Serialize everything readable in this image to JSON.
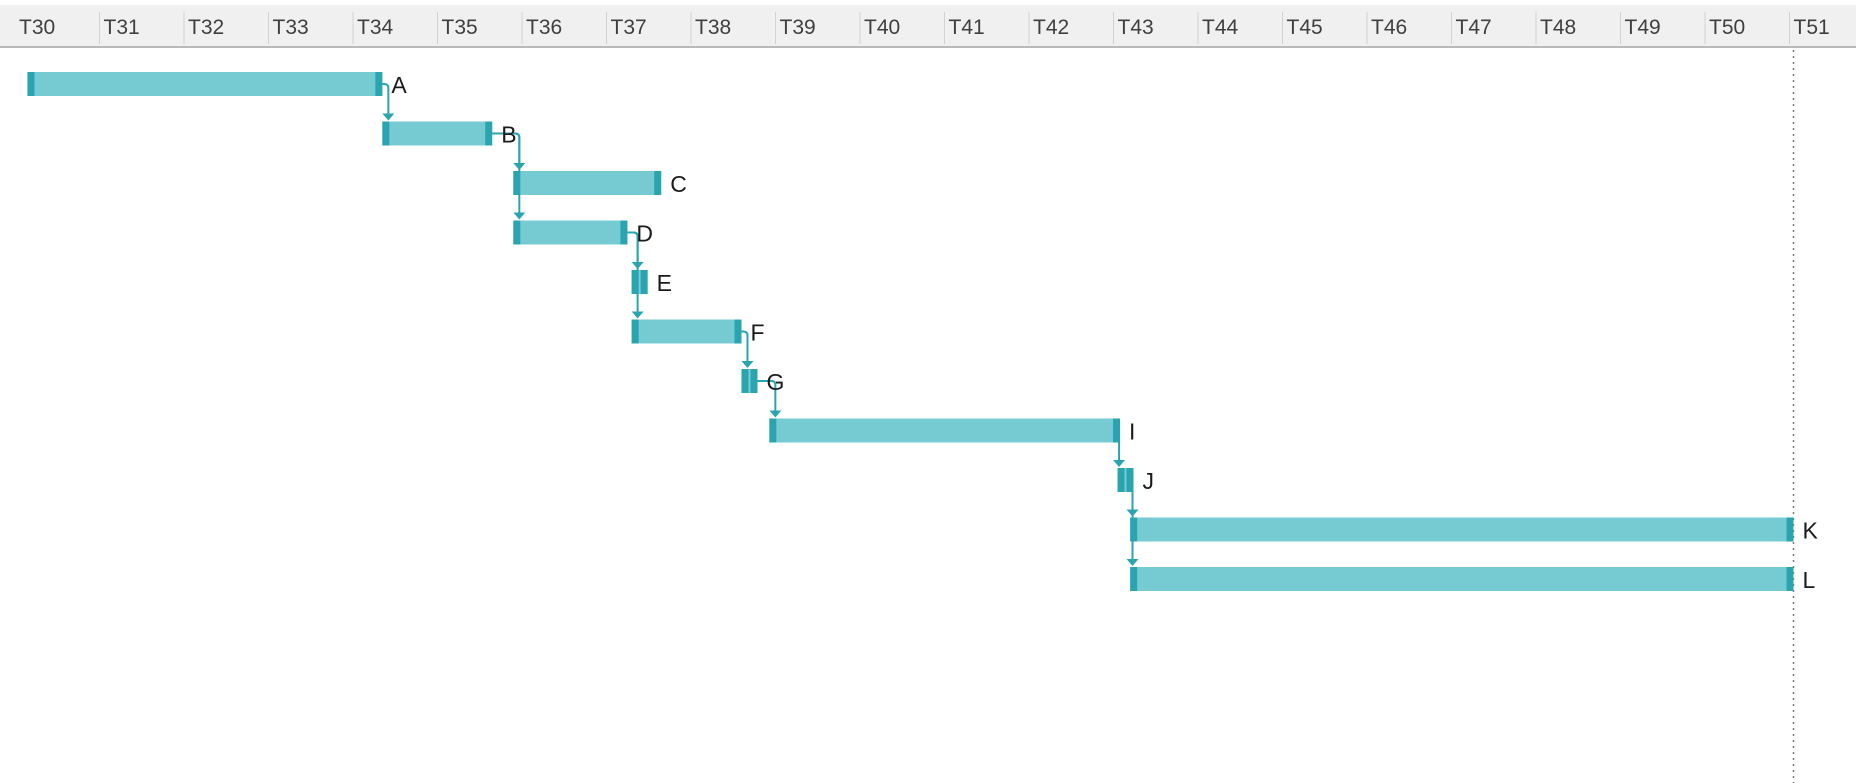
{
  "timeline": {
    "unit_prefix": "T",
    "ticks": [
      "T30",
      "T31",
      "T32",
      "T33",
      "T34",
      "T35",
      "T36",
      "T37",
      "T38",
      "T39",
      "T40",
      "T41",
      "T42",
      "T43",
      "T44",
      "T45",
      "T46",
      "T47",
      "T48",
      "T49",
      "T50",
      "T51"
    ],
    "first_tick": 30,
    "marker_at": 51
  },
  "colors": {
    "bar": "#76cbd3",
    "bar_edge": "#2aa5b0",
    "dependency": "#2aa5b0"
  },
  "tasks": [
    {
      "id": "A",
      "label": "A",
      "start": 30.1,
      "end": 34.3
    },
    {
      "id": "B",
      "label": "B",
      "start": 34.3,
      "end": 35.6
    },
    {
      "id": "C",
      "label": "C",
      "start": 35.85,
      "end": 37.6
    },
    {
      "id": "D",
      "label": "D",
      "start": 35.85,
      "end": 37.2
    },
    {
      "id": "E",
      "label": "E",
      "start": 37.25,
      "end": 37.42
    },
    {
      "id": "F",
      "label": "F",
      "start": 37.25,
      "end": 38.55
    },
    {
      "id": "G",
      "label": "G",
      "start": 38.55,
      "end": 38.73
    },
    {
      "id": "I",
      "label": "I",
      "start": 38.88,
      "end": 43.03
    },
    {
      "id": "J",
      "label": "J",
      "start": 43.0,
      "end": 43.17
    },
    {
      "id": "K",
      "label": "K",
      "start": 43.15,
      "end": 51.0
    },
    {
      "id": "L",
      "label": "L",
      "start": 43.15,
      "end": 51.0
    }
  ],
  "dependencies": [
    {
      "from": "A",
      "to": "B"
    },
    {
      "from": "B",
      "to": "C"
    },
    {
      "from": "B",
      "to": "D"
    },
    {
      "from": "D",
      "to": "E"
    },
    {
      "from": "D",
      "to": "F"
    },
    {
      "from": "F",
      "to": "G"
    },
    {
      "from": "G",
      "to": "I"
    },
    {
      "from": "I",
      "to": "J"
    },
    {
      "from": "J",
      "to": "K"
    },
    {
      "from": "J",
      "to": "L"
    }
  ]
}
